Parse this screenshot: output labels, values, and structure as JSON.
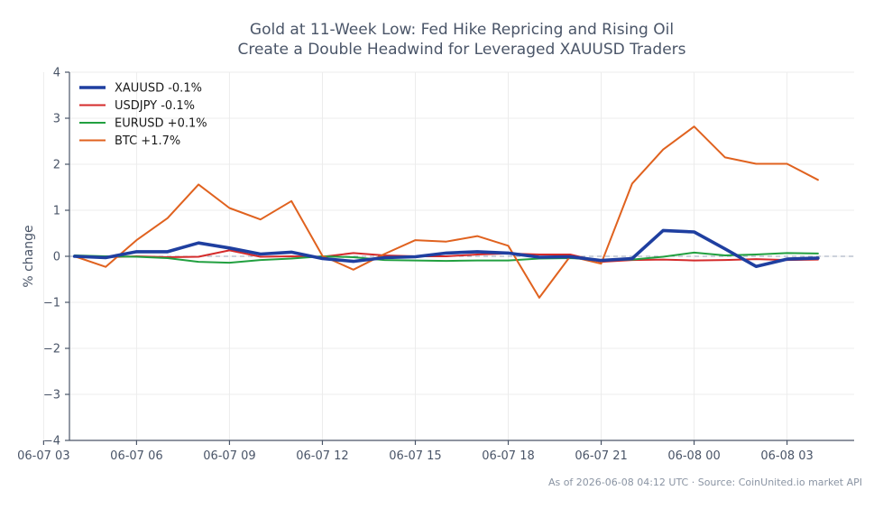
{
  "chart_data": {
    "type": "line",
    "title_lines": [
      "Gold at 11-Week Low: Fed Hike Repricing and Rising Oil",
      "Create a Double Headwind for Leveraged XAUUSD Traders"
    ],
    "ylabel": "% change",
    "xlabel": "",
    "ylim": [
      -4,
      4
    ],
    "yticks": [
      -4,
      -3,
      -2,
      -1,
      0,
      1,
      2,
      3,
      4
    ],
    "ytick_labels": [
      "−4",
      "−3",
      "−2",
      "−1",
      "0",
      "1",
      "2",
      "3",
      "4"
    ],
    "xlim": [
      "06-07 03:50",
      "06-08 05:10"
    ],
    "xticks": [
      "06-07 03:00",
      "06-07 06:00",
      "06-07 09:00",
      "06-07 12:00",
      "06-07 15:00",
      "06-07 18:00",
      "06-07 21:00",
      "06-08 00:00",
      "06-08 03:00"
    ],
    "xtick_labels": [
      "06-07 03",
      "06-07 06",
      "06-07 09",
      "06-07 12",
      "06-07 15",
      "06-07 18",
      "06-07 21",
      "06-08 00",
      "06-08 03"
    ],
    "x": [
      "06-07 04:00",
      "06-07 05:00",
      "06-07 06:00",
      "06-07 07:00",
      "06-07 08:00",
      "06-07 09:00",
      "06-07 10:00",
      "06-07 11:00",
      "06-07 12:00",
      "06-07 13:00",
      "06-07 14:00",
      "06-07 15:00",
      "06-07 16:00",
      "06-07 17:00",
      "06-07 18:00",
      "06-07 19:00",
      "06-07 20:00",
      "06-07 21:00",
      "06-07 22:00",
      "06-07 23:00",
      "06-08 00:00",
      "06-08 01:00",
      "06-08 02:00",
      "06-08 03:00",
      "06-08 04:00"
    ],
    "zero_line": true,
    "grid": true,
    "legend_position": "top-left",
    "series": [
      {
        "name": "XAUUSD -0.1%",
        "color": "#1f3fa0",
        "values": [
          0.0,
          -0.03,
          0.1,
          0.1,
          0.29,
          0.18,
          0.05,
          0.09,
          -0.05,
          -0.11,
          -0.03,
          -0.01,
          0.07,
          0.1,
          0.07,
          -0.02,
          -0.01,
          -0.09,
          -0.05,
          0.56,
          0.53,
          0.16,
          -0.22,
          -0.06,
          -0.04
        ]
      },
      {
        "name": "USDJPY -0.1%",
        "color": "#d42b2b",
        "values": [
          0.0,
          -0.02,
          0.0,
          -0.02,
          -0.01,
          0.13,
          -0.01,
          0.0,
          -0.01,
          0.07,
          0.02,
          0.0,
          0.0,
          0.04,
          0.06,
          0.04,
          0.04,
          -0.12,
          -0.08,
          -0.07,
          -0.09,
          -0.08,
          -0.06,
          -0.08,
          -0.07
        ]
      },
      {
        "name": "EURUSD +0.1%",
        "color": "#22a040",
        "values": [
          0.02,
          0.0,
          -0.01,
          -0.04,
          -0.12,
          -0.14,
          -0.08,
          -0.05,
          0.0,
          -0.02,
          -0.08,
          -0.09,
          -0.1,
          -0.09,
          -0.09,
          -0.05,
          -0.04,
          -0.08,
          -0.07,
          -0.01,
          0.08,
          0.02,
          0.04,
          0.07,
          0.06
        ]
      },
      {
        "name": "BTC +1.7%",
        "color": "#e0621f",
        "values": [
          0.0,
          -0.23,
          0.35,
          0.83,
          1.56,
          1.05,
          0.8,
          1.2,
          0.01,
          -0.29,
          0.05,
          0.35,
          0.32,
          0.44,
          0.23,
          -0.9,
          0.0,
          -0.16,
          1.58,
          2.32,
          2.82,
          2.15,
          2.01,
          2.01,
          1.66
        ]
      }
    ]
  },
  "footer": {
    "text": "As of 2026-06-08 04:12 UTC · Source: CoinUnited.io market API"
  }
}
